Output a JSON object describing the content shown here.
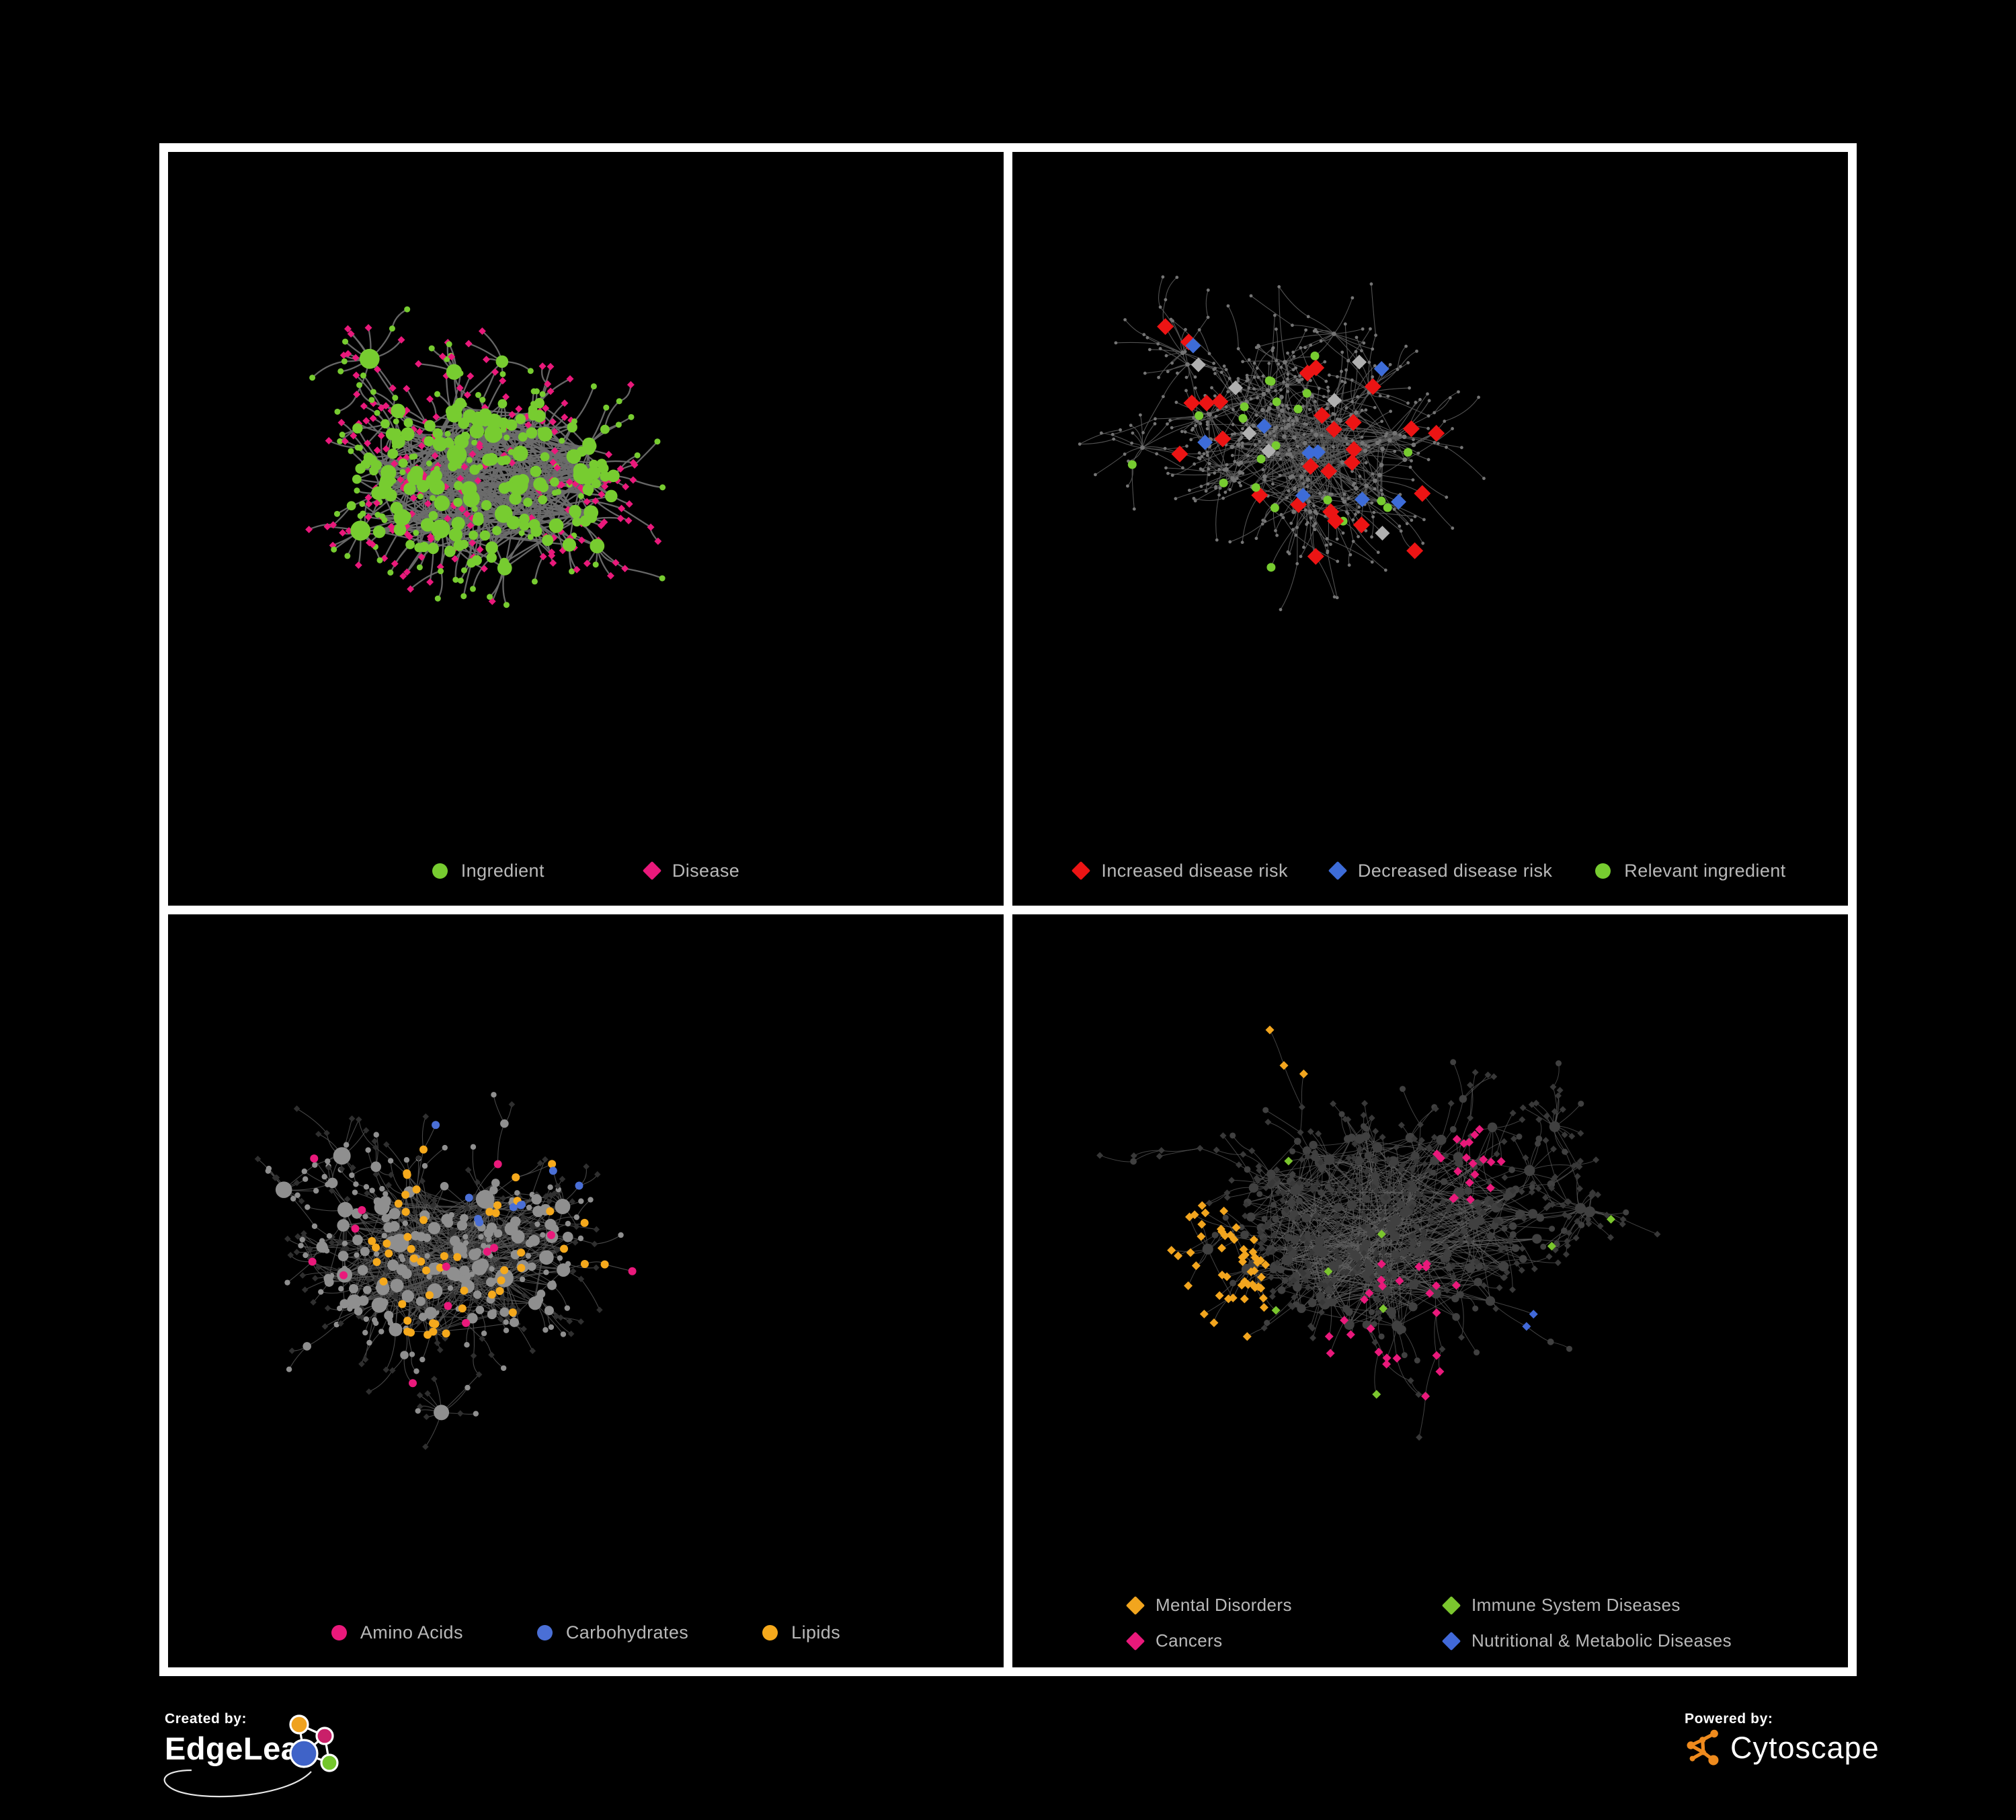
{
  "poster": {
    "background": "#000000",
    "frame_color": "#ffffff"
  },
  "footer": {
    "created_by_label": "Created by:",
    "edgeleap_name": "EdgeLeap",
    "powered_by_label": "Powered by:",
    "cytoscape_name": "Cytoscape",
    "cytoscape_orange": "#ee8a1d",
    "edgeleap_logo_colors": {
      "orange": "#efa21f",
      "magenta": "#c92069",
      "blue": "#3f63c8",
      "green": "#74c62c"
    }
  },
  "panels": [
    {
      "id": "ingredient-disease",
      "legend_layout": "gap-wide",
      "legend": [
        {
          "label": "Ingredient",
          "shape": "circle",
          "color": "#77cc30"
        },
        {
          "label": "Disease",
          "shape": "diamond",
          "color": "#e9197b"
        }
      ],
      "network": {
        "seed": 7,
        "total": 500,
        "core": 150,
        "core_x": 0.38,
        "core_y": 0.44,
        "core_r": 165,
        "arm_len": 41,
        "fan_prob": 0.05,
        "fan_min": 5,
        "fan_max": 13,
        "extra_links": 85,
        "edge": {
          "color": "#6b6b6b",
          "width": 2.3,
          "opacity": 0.95
        },
        "style": {
          "mode": "bicolor",
          "hub_color": "#77cc30",
          "leaf_circle_color": "#77cc30",
          "leaf_diamond_color": "#e9197b",
          "leaf_circle_prob": 0.34,
          "leaf_r": 4.5,
          "diamond_s": 5.5
        }
      }
    },
    {
      "id": "disease-risk",
      "legend_layout": "gap-narrow",
      "legend": [
        {
          "label": "Increased disease risk",
          "shape": "diamond",
          "color": "#ec1414"
        },
        {
          "label": "Decreased disease risk",
          "shape": "diamond",
          "color": "#3d6cd8"
        },
        {
          "label": "Relevant ingredient",
          "shape": "circle",
          "color": "#77cc30"
        }
      ],
      "network": {
        "seed": 23,
        "total": 640,
        "core": 95,
        "core_x": 0.37,
        "core_y": 0.4,
        "core_r": 120,
        "arm_len": 52,
        "fan_prob": 0.06,
        "fan_min": 7,
        "fan_max": 18,
        "extra_links": 35,
        "edge": {
          "color": "#5a5a5a",
          "width": 1.1,
          "opacity": 0.9
        },
        "style": {
          "mode": "highlight",
          "base_color": "#757575",
          "base_r": 2.4,
          "hub_r": 3.4,
          "specials": [
            {
              "target": "any",
              "shape": "diamond",
              "color": "#ec1414",
              "size": 12.5,
              "count": 27,
              "region": [
                0.15,
                0.18,
                0.75,
                0.72
              ]
            },
            {
              "target": "any",
              "shape": "diamond",
              "color": "#3d6cd8",
              "size": 11.5,
              "count": 9,
              "region": [
                0.2,
                0.25,
                0.95,
                0.62
              ]
            },
            {
              "target": "any",
              "shape": "diamond",
              "color": "#b0b0b0",
              "size": 11,
              "count": 7,
              "region": [
                0.22,
                0.25,
                0.68,
                0.65
              ]
            },
            {
              "target": "any",
              "shape": "circle",
              "color": "#77cc30",
              "size": 6.5,
              "count": 21,
              "region": [
                0.12,
                0.18,
                0.72,
                0.7
              ]
            }
          ]
        }
      }
    },
    {
      "id": "ingredient-classes",
      "legend_layout": "gap-mid",
      "legend": [
        {
          "label": "Amino Acids",
          "shape": "circle",
          "color": "#e9197b"
        },
        {
          "label": "Carbohydrates",
          "shape": "circle",
          "color": "#4a6fd6"
        },
        {
          "label": "Lipids",
          "shape": "circle",
          "color": "#f5a91c"
        }
      ],
      "network": {
        "seed": 41,
        "total": 520,
        "core": 150,
        "core_x": 0.33,
        "core_y": 0.45,
        "core_r": 160,
        "arm_len": 42,
        "fan_prob": 0.05,
        "fan_min": 6,
        "fan_max": 14,
        "extra_links": 95,
        "edge": {
          "color": "#525252",
          "width": 1.1,
          "opacity": 0.85
        },
        "style": {
          "mode": "classes",
          "circle_color": "#8f8f8f",
          "diamond_color": "#2f2f2f",
          "leaf_circle_prob": 0.42,
          "leaf_r": 4.2,
          "diamond_s": 4.8,
          "specials": [
            {
              "target": "circle",
              "shape": "circle",
              "color": "#f5a91c",
              "size": 6,
              "count": 52,
              "foci": [
                [
                  0.4,
                  0.26,
                  0.14
                ],
                [
                  0.33,
                  0.47,
                  0.1
                ],
                [
                  0.52,
                  0.42,
                  0.08
                ]
              ]
            },
            {
              "target": "circle",
              "shape": "circle",
              "color": "#e9197b",
              "size": 6,
              "count": 14,
              "foci": [
                [
                  0.5,
                  0.55,
                  0.45
                ]
              ]
            },
            {
              "target": "circle",
              "shape": "circle",
              "color": "#4a6fd6",
              "size": 6,
              "count": 9,
              "foci": [
                [
                  0.4,
                  0.28,
                  0.12
                ],
                [
                  0.55,
                  0.75,
                  0.06
                ]
              ]
            }
          ]
        }
      }
    },
    {
      "id": "disease-categories",
      "legend_layout": "grid2",
      "legend": [
        {
          "label": "Mental Disorders",
          "shape": "diamond",
          "color": "#f2a51e"
        },
        {
          "label": "Immune System Diseases",
          "shape": "diamond",
          "color": "#7bc62e"
        },
        {
          "label": "Cancers",
          "shape": "diamond",
          "color": "#e9197b"
        },
        {
          "label": "Nutritional & Metabolic Diseases",
          "shape": "diamond",
          "color": "#4169d9"
        }
      ],
      "network": {
        "seed": 59,
        "total": 660,
        "core": 175,
        "core_x": 0.45,
        "core_y": 0.42,
        "core_r": 190,
        "arm_len": 46,
        "fan_prob": 0.05,
        "fan_min": 6,
        "fan_max": 14,
        "extra_links": 115,
        "edge": {
          "color": "#5e5e5e",
          "width": 1.0,
          "opacity": 0.7
        },
        "style": {
          "mode": "diamondmap",
          "diamond_color": "#383838",
          "circle_color": "#404040",
          "leaf_circle_prob": 0.18,
          "leaf_r": 4,
          "diamond_s": 5,
          "specials": [
            {
              "target": "diamond",
              "shape": "diamond",
              "color": "#f2a51e",
              "size": 6.5,
              "count": 72,
              "foci": [
                [
                  0.2,
                  0.5,
                  0.11
                ],
                [
                  0.3,
                  0.2,
                  0.06
                ],
                [
                  0.13,
                  0.6,
                  0.06
                ]
              ]
            },
            {
              "target": "diamond",
              "shape": "diamond",
              "color": "#e9197b",
              "size": 6.5,
              "count": 44,
              "foci": [
                [
                  0.47,
                  0.57,
                  0.1
                ],
                [
                  0.55,
                  0.33,
                  0.05
                ],
                [
                  0.4,
                  0.75,
                  0.05
                ]
              ]
            },
            {
              "target": "diamond",
              "shape": "diamond",
              "color": "#4169d9",
              "size": 6.5,
              "count": 55,
              "foci": [
                [
                  0.66,
                  0.6,
                  0.08
                ],
                [
                  0.79,
                  0.3,
                  0.09
                ],
                [
                  0.58,
                  0.12,
                  0.07
                ],
                [
                  0.88,
                  0.52,
                  0.05
                ],
                [
                  0.35,
                  0.88,
                  0.05
                ]
              ]
            },
            {
              "target": "diamond",
              "shape": "diamond",
              "color": "#7bc62e",
              "size": 6.5,
              "count": 8,
              "foci": [
                [
                  0.5,
                  0.45,
                  0.3
                ]
              ]
            }
          ]
        }
      }
    }
  ]
}
